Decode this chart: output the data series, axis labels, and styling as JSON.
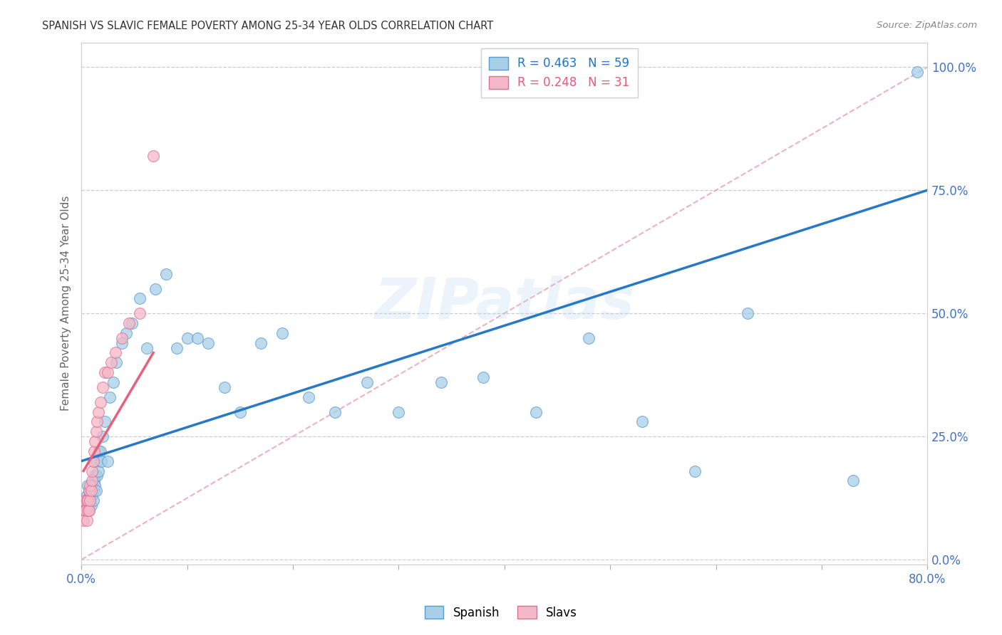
{
  "title": "SPANISH VS SLAVIC FEMALE POVERTY AMONG 25-34 YEAR OLDS CORRELATION CHART",
  "source": "Source: ZipAtlas.com",
  "ylabel": "Female Poverty Among 25-34 Year Olds",
  "xlim": [
    0.0,
    0.8
  ],
  "ylim": [
    -0.01,
    1.05
  ],
  "ytick_vals": [
    0.0,
    0.25,
    0.5,
    0.75,
    1.0
  ],
  "xtick_vals": [
    0.0,
    0.1,
    0.2,
    0.3,
    0.4,
    0.5,
    0.6,
    0.7,
    0.8
  ],
  "watermark": "ZIPatlas",
  "spanish_color": "#a8cfe8",
  "slavs_color": "#f4b8c8",
  "spanish_edge": "#5b9bd5",
  "slavs_edge": "#e07090",
  "trendline_spanish_color": "#2878c8",
  "trendline_slavs_color": "#e8607a",
  "diagonal_color": "#e8a0b0",
  "yaxis_label_color": "#4472c4",
  "xaxis_label_color": "#4472c4",
  "spanish_x": [
    0.003,
    0.004,
    0.005,
    0.006,
    0.006,
    0.007,
    0.007,
    0.008,
    0.008,
    0.009,
    0.009,
    0.01,
    0.01,
    0.011,
    0.012,
    0.012,
    0.013,
    0.013,
    0.014,
    0.015,
    0.015,
    0.016,
    0.017,
    0.018,
    0.019,
    0.02,
    0.022,
    0.025,
    0.027,
    0.03,
    0.033,
    0.038,
    0.042,
    0.048,
    0.055,
    0.062,
    0.07,
    0.08,
    0.09,
    0.1,
    0.11,
    0.12,
    0.135,
    0.15,
    0.17,
    0.19,
    0.215,
    0.24,
    0.27,
    0.3,
    0.34,
    0.38,
    0.43,
    0.48,
    0.53,
    0.58,
    0.63,
    0.73,
    0.79
  ],
  "spanish_y": [
    0.12,
    0.1,
    0.13,
    0.11,
    0.15,
    0.1,
    0.14,
    0.12,
    0.13,
    0.11,
    0.14,
    0.13,
    0.15,
    0.12,
    0.14,
    0.16,
    0.15,
    0.17,
    0.14,
    0.17,
    0.2,
    0.18,
    0.22,
    0.22,
    0.2,
    0.25,
    0.28,
    0.2,
    0.33,
    0.36,
    0.4,
    0.44,
    0.46,
    0.48,
    0.53,
    0.43,
    0.55,
    0.58,
    0.43,
    0.45,
    0.45,
    0.44,
    0.35,
    0.3,
    0.44,
    0.46,
    0.33,
    0.3,
    0.36,
    0.3,
    0.36,
    0.37,
    0.3,
    0.45,
    0.28,
    0.18,
    0.5,
    0.16,
    0.99
  ],
  "slavs_x": [
    0.002,
    0.003,
    0.003,
    0.004,
    0.005,
    0.005,
    0.006,
    0.006,
    0.007,
    0.007,
    0.008,
    0.008,
    0.009,
    0.01,
    0.01,
    0.011,
    0.012,
    0.013,
    0.014,
    0.015,
    0.016,
    0.018,
    0.02,
    0.022,
    0.025,
    0.028,
    0.032,
    0.038,
    0.045,
    0.055,
    0.068
  ],
  "slavs_y": [
    0.08,
    0.1,
    0.12,
    0.1,
    0.08,
    0.12,
    0.1,
    0.12,
    0.1,
    0.14,
    0.12,
    0.15,
    0.14,
    0.16,
    0.18,
    0.2,
    0.22,
    0.24,
    0.26,
    0.28,
    0.3,
    0.32,
    0.35,
    0.38,
    0.38,
    0.4,
    0.42,
    0.45,
    0.48,
    0.5,
    0.82
  ],
  "trendline_spanish_x0": 0.0,
  "trendline_spanish_y0": 0.2,
  "trendline_spanish_x1": 0.8,
  "trendline_spanish_y1": 0.75,
  "trendline_slavs_x0": 0.002,
  "trendline_slavs_y0": 0.18,
  "trendline_slavs_x1": 0.068,
  "trendline_slavs_y1": 0.42
}
